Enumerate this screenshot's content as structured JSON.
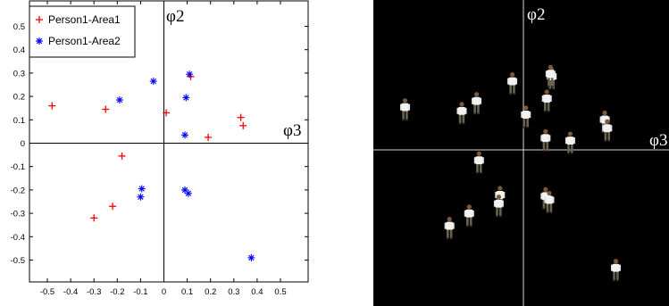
{
  "chart_data": [
    {
      "type": "scatter",
      "title": "",
      "xlabel": "",
      "ylabel": "",
      "xlim": [
        -0.6,
        0.6
      ],
      "ylim": [
        -0.6,
        0.6
      ],
      "x_ticks": [
        "-0.5",
        "-0.4",
        "-0.3",
        "-0.2",
        "-0.1",
        "0",
        "0.1",
        "0.2",
        "0.3",
        "0.4",
        "0.5"
      ],
      "y_ticks": [
        "0.5",
        "0.4",
        "0.3",
        "0.2",
        "0.1",
        "0",
        "-0.1",
        "-0.2",
        "-0.3",
        "-0.4",
        "-0.5"
      ],
      "axis_label_x": "φ3",
      "axis_label_y": "φ2",
      "grid": false,
      "legend_position": "top-left",
      "series": [
        {
          "name": "Person1-Area1",
          "color": "#ff0000",
          "marker": "+",
          "points": [
            [
              -0.48,
              0.16
            ],
            [
              -0.25,
              0.145
            ],
            [
              -0.18,
              -0.055
            ],
            [
              -0.22,
              -0.27
            ],
            [
              -0.3,
              -0.32
            ],
            [
              0.01,
              0.13
            ],
            [
              0.115,
              0.285
            ],
            [
              0.19,
              0.025
            ],
            [
              0.33,
              0.11
            ],
            [
              0.34,
              0.075
            ]
          ]
        },
        {
          "name": "Person1-Area2",
          "color": "#0000ff",
          "marker": "*",
          "points": [
            [
              -0.19,
              0.185
            ],
            [
              -0.045,
              0.265
            ],
            [
              0.11,
              0.295
            ],
            [
              0.095,
              0.195
            ],
            [
              0.09,
              0.035
            ],
            [
              -0.095,
              -0.195
            ],
            [
              -0.1,
              -0.23
            ],
            [
              0.09,
              -0.2
            ],
            [
              0.105,
              -0.215
            ],
            [
              0.375,
              -0.49
            ]
          ]
        }
      ]
    },
    {
      "type": "scatter",
      "title": "",
      "axis_label_x": "φ3",
      "axis_label_y": "φ2",
      "background": "#000000",
      "marker": "person-figure-icon",
      "xlim": [
        -0.6,
        0.6
      ],
      "ylim": [
        -0.6,
        0.6
      ],
      "points": [
        [
          -0.48,
          0.16
        ],
        [
          -0.25,
          0.145
        ],
        [
          -0.18,
          -0.055
        ],
        [
          -0.22,
          -0.27
        ],
        [
          -0.3,
          -0.32
        ],
        [
          0.01,
          0.13
        ],
        [
          0.115,
          0.285
        ],
        [
          0.19,
          0.025
        ],
        [
          0.33,
          0.11
        ],
        [
          0.34,
          0.075
        ],
        [
          -0.19,
          0.185
        ],
        [
          -0.045,
          0.265
        ],
        [
          0.11,
          0.295
        ],
        [
          0.095,
          0.195
        ],
        [
          0.09,
          0.035
        ],
        [
          -0.095,
          -0.195
        ],
        [
          -0.1,
          -0.23
        ],
        [
          0.09,
          -0.2
        ],
        [
          0.105,
          -0.215
        ],
        [
          0.375,
          -0.49
        ]
      ]
    }
  ]
}
